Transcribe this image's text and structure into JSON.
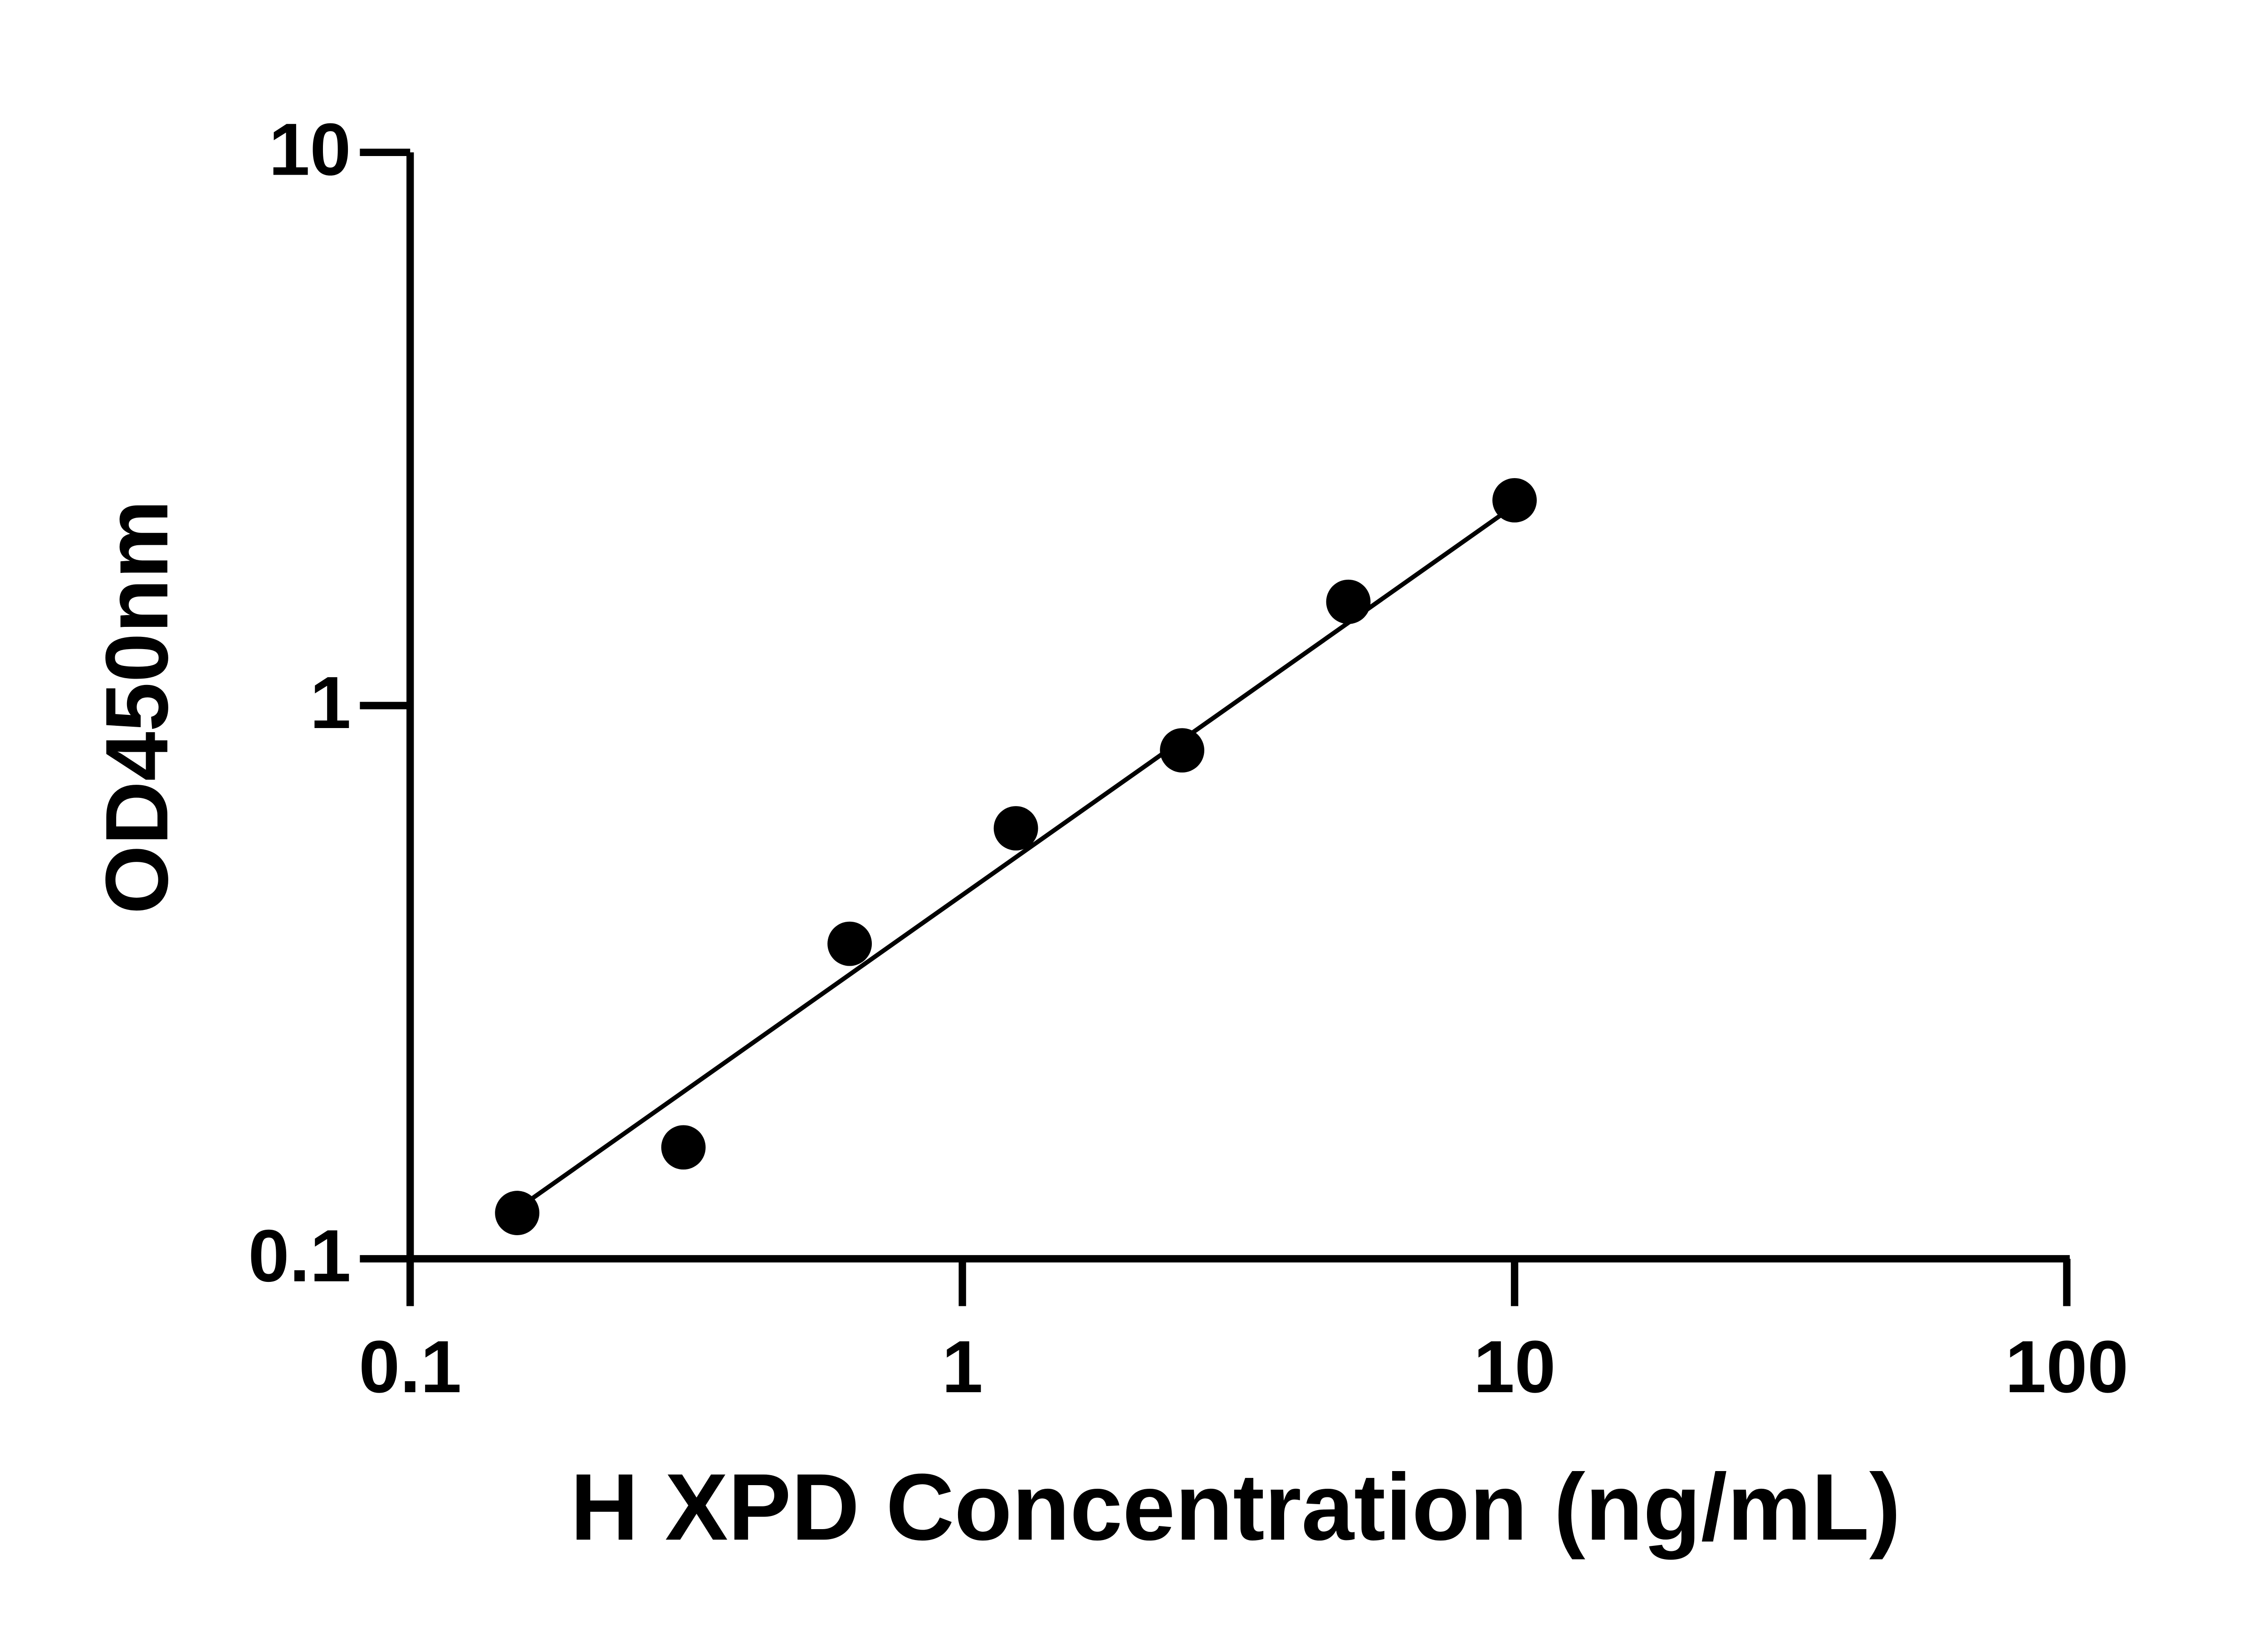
{
  "chart_data": {
    "type": "scatter",
    "xlabel": "H XPD Concentration (ng/mL)",
    "ylabel": "OD450nm",
    "x_log": true,
    "y_log": true,
    "xlim": [
      0.1,
      100
    ],
    "ylim": [
      0.1,
      10
    ],
    "xticks": [
      0.1,
      1,
      10,
      100
    ],
    "yticks": [
      0.1,
      1,
      10
    ],
    "series": [
      {
        "color": "#000000",
        "x": [
          0.15625,
          0.3125,
          0.625,
          1.25,
          2.5,
          5,
          10
        ],
        "values": [
          0.121,
          0.159,
          0.371,
          0.6,
          0.83,
          1.54,
          2.35
        ]
      }
    ],
    "fit_line": {
      "color": "#000000",
      "x": [
        0.15625,
        10
      ],
      "values": [
        0.123,
        2.3
      ]
    }
  }
}
